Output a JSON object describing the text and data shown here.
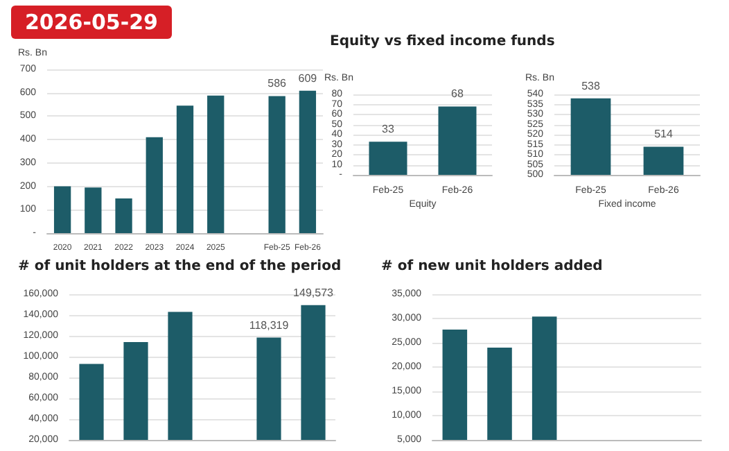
{
  "chart_data": [
    {
      "type": "bar",
      "ylabel": "Rs. Bn",
      "annotations": [
        "2026-05-29"
      ],
      "categories": [
        "2020",
        "2021",
        "2022",
        "2023",
        "2024",
        "2025",
        null,
        "Feb-25",
        "Feb-26"
      ],
      "values": [
        200,
        195,
        148,
        410,
        545,
        588,
        null,
        586,
        609
      ],
      "color": "#1d5c68",
      "value_labels": [
        null,
        null,
        null,
        null,
        null,
        null,
        null,
        "586",
        "609"
      ],
      "ylim": [
        0,
        700
      ],
      "yticks": [
        {
          "value": 0,
          "label": "-"
        },
        100,
        200,
        300,
        400,
        500,
        600,
        700
      ],
      "grid": "y"
    },
    {
      "type": "bar",
      "title": "Equity vs fixed income funds",
      "ylabel": "Rs. Bn",
      "xlabel": "Equity",
      "categories": [
        "Feb-25",
        "Feb-26"
      ],
      "values": [
        33,
        68
      ],
      "color": "#1d5c68",
      "data_labels": true,
      "ylim": [
        0,
        80
      ],
      "yticks": [
        {
          "value": 0,
          "label": "-"
        },
        10,
        20,
        30,
        40,
        50,
        60,
        70,
        80
      ],
      "grid": "y"
    },
    {
      "type": "bar",
      "ylabel": "Rs. Bn",
      "xlabel": "Fixed income",
      "categories": [
        "Feb-25",
        "Feb-26"
      ],
      "values": [
        538,
        514
      ],
      "color": "#1d5c68",
      "data_labels": true,
      "ylim": [
        500,
        540
      ],
      "yticks": [
        500,
        505,
        510,
        515,
        520,
        525,
        530,
        535,
        540
      ],
      "grid": "y"
    },
    {
      "type": "bar",
      "title": "# of unit holders at the end of the period",
      "categories": [
        null,
        null,
        null,
        null,
        null,
        null
      ],
      "values": [
        93000,
        114000,
        143000,
        null,
        118319,
        149573
      ],
      "color": "#1d5c68",
      "value_labels": [
        null,
        null,
        null,
        null,
        "118,319",
        "149,573"
      ],
      "ylim": [
        20000,
        160000
      ],
      "yticks": [
        {
          "value": 20000,
          "label": "20,000"
        },
        {
          "value": 40000,
          "label": "40,000"
        },
        {
          "value": 60000,
          "label": "60,000"
        },
        {
          "value": 80000,
          "label": "80,000"
        },
        {
          "value": 100000,
          "label": "100,000"
        },
        {
          "value": 120000,
          "label": "120,000"
        },
        {
          "value": 140000,
          "label": "140,000"
        },
        {
          "value": 160000,
          "label": "160,000"
        }
      ],
      "grid": "y"
    },
    {
      "type": "bar",
      "title": "# of new unit holders added",
      "categories": [
        null,
        null,
        null,
        null,
        null,
        null
      ],
      "values": [
        27700,
        24000,
        30400,
        null,
        null,
        null
      ],
      "color": "#1d5c68",
      "ylim": [
        5000,
        35000
      ],
      "yticks": [
        {
          "value": 5000,
          "label": "5,000"
        },
        {
          "value": 10000,
          "label": "10,000"
        },
        {
          "value": 15000,
          "label": "15,000"
        },
        {
          "value": 20000,
          "label": "20,000"
        },
        {
          "value": 25000,
          "label": "25,000"
        },
        {
          "value": 30000,
          "label": "30,000"
        },
        {
          "value": 35000,
          "label": "35,000"
        }
      ],
      "grid": "y"
    }
  ]
}
